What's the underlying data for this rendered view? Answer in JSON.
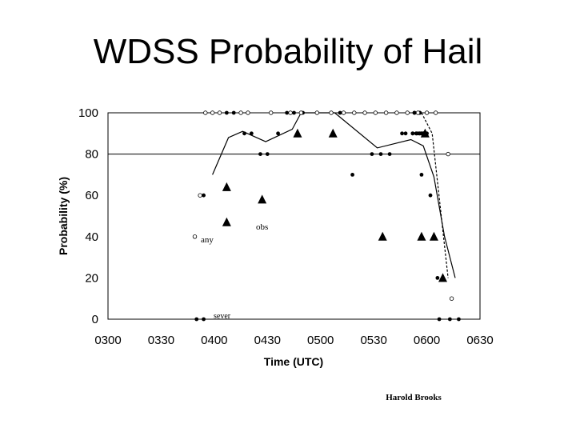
{
  "title": "WDSS Probability of Hail",
  "credit": "Harold Brooks",
  "chart_data": {
    "type": "scatter",
    "title": "WDSS Probability of Hail",
    "xlabel": "Time (UTC)",
    "ylabel": "Probability (%)",
    "x_tick_labels": [
      "0300",
      "0330",
      "0400",
      "0430",
      "0500",
      "0530",
      "0600",
      "0630"
    ],
    "y_tick_labels": [
      "0",
      "20",
      "40",
      "60",
      "80",
      "100"
    ],
    "xlim": [
      "0300",
      "0630"
    ],
    "ylim": [
      0,
      100
    ],
    "annotations": [
      "obs",
      "any",
      "sever"
    ],
    "reference_line": {
      "y": 80
    },
    "series": [
      {
        "marker": "filled-circle",
        "points": [
          {
            "x": "0354",
            "y": 60
          },
          {
            "x": "0407",
            "y": 100
          },
          {
            "x": "0411",
            "y": 100
          },
          {
            "x": "0417",
            "y": 90
          },
          {
            "x": "0421",
            "y": 90
          },
          {
            "x": "0426",
            "y": 80
          },
          {
            "x": "0430",
            "y": 80
          },
          {
            "x": "0436",
            "y": 90
          },
          {
            "x": "0441",
            "y": 100
          },
          {
            "x": "0445",
            "y": 100
          },
          {
            "x": "0450",
            "y": 100
          },
          {
            "x": "0458",
            "y": 100
          },
          {
            "x": "0506",
            "y": 100
          },
          {
            "x": "0511",
            "y": 100
          },
          {
            "x": "0518",
            "y": 70
          },
          {
            "x": "0529",
            "y": 80
          },
          {
            "x": "0534",
            "y": 80
          },
          {
            "x": "0539",
            "y": 80
          },
          {
            "x": "0546",
            "y": 90
          },
          {
            "x": "0552",
            "y": 90
          },
          {
            "x": "0557",
            "y": 90
          },
          {
            "x": "0549",
            "y": 100
          },
          {
            "x": "0553",
            "y": 100
          },
          {
            "x": "0556",
            "y": 100
          },
          {
            "x": "0548",
            "y": 90
          },
          {
            "x": "0552",
            "y": 90
          },
          {
            "x": "0556",
            "y": 90
          },
          {
            "x": "0549",
            "y": 100
          },
          {
            "x": "0553",
            "y": 100
          },
          {
            "x": "0556",
            "y": 100
          },
          {
            "x": "0554",
            "y": 90
          },
          {
            "x": "0557",
            "y": 90
          },
          {
            "x": "0558",
            "y": 90
          },
          {
            "x": "0556",
            "y": 90
          },
          {
            "x": "0558",
            "y": 90
          },
          {
            "x": "0559",
            "y": 90
          },
          {
            "x": "0557",
            "y": 90
          },
          {
            "x": "0559",
            "y": 90
          },
          {
            "x": "0600",
            "y": 90
          },
          {
            "x": "0557",
            "y": 70
          },
          {
            "x": "0602",
            "y": 60
          },
          {
            "x": "0604",
            "y": 40
          },
          {
            "x": "0606",
            "y": 20
          },
          {
            "x": "0554",
            "y": 90
          },
          {
            "x": "0558",
            "y": 90
          },
          {
            "x": "0555",
            "y": 90
          },
          {
            "x": "0350",
            "y": 0
          },
          {
            "x": "0354",
            "y": 0
          },
          {
            "x": "0607",
            "y": 0
          },
          {
            "x": "0613",
            "y": 0
          },
          {
            "x": "0618",
            "y": 0
          }
        ]
      },
      {
        "marker": "open-circle",
        "points": [
          {
            "x": "0349",
            "y": 40
          },
          {
            "x": "0352",
            "y": 60
          },
          {
            "x": "0355",
            "y": 100
          },
          {
            "x": "0359",
            "y": 100
          },
          {
            "x": "0403",
            "y": 100
          },
          {
            "x": "0415",
            "y": 100
          },
          {
            "x": "0419",
            "y": 100
          },
          {
            "x": "0432",
            "y": 100
          },
          {
            "x": "0443",
            "y": 100
          },
          {
            "x": "0449",
            "y": 100
          },
          {
            "x": "0458",
            "y": 100
          },
          {
            "x": "0506",
            "y": 100
          },
          {
            "x": "0513",
            "y": 100
          },
          {
            "x": "0519",
            "y": 100
          },
          {
            "x": "0525",
            "y": 100
          },
          {
            "x": "0531",
            "y": 100
          },
          {
            "x": "0537",
            "y": 100
          },
          {
            "x": "0543",
            "y": 100
          },
          {
            "x": "0549",
            "y": 100
          },
          {
            "x": "0555",
            "y": 100
          },
          {
            "x": "0600",
            "y": 100
          },
          {
            "x": "0605",
            "y": 100
          },
          {
            "x": "0612",
            "y": 80
          },
          {
            "x": "0614",
            "y": 10
          }
        ]
      },
      {
        "marker": "triangle",
        "points": [
          {
            "x": "0407",
            "y": 64
          },
          {
            "x": "0407",
            "y": 47
          },
          {
            "x": "0427",
            "y": 58
          },
          {
            "x": "0447",
            "y": 90
          },
          {
            "x": "0507",
            "y": 90
          },
          {
            "x": "0535",
            "y": 40
          },
          {
            "x": "0557",
            "y": 40
          },
          {
            "x": "0559",
            "y": 90
          },
          {
            "x": "0604",
            "y": 40
          },
          {
            "x": "0609",
            "y": 20
          }
        ]
      }
    ],
    "lines": [
      {
        "style": "solid",
        "points": [
          {
            "x": "0359",
            "y": 70
          },
          {
            "x": "0408",
            "y": 88
          },
          {
            "x": "0416",
            "y": 91
          },
          {
            "x": "0429",
            "y": 86
          },
          {
            "x": "0444",
            "y": 92
          },
          {
            "x": "0449",
            "y": 100
          },
          {
            "x": "0508",
            "y": 100
          },
          {
            "x": "0532",
            "y": 83
          },
          {
            "x": "0551",
            "y": 87
          },
          {
            "x": "0558",
            "y": 84
          },
          {
            "x": "0604",
            "y": 69
          },
          {
            "x": "0610",
            "y": 40
          },
          {
            "x": "0616",
            "y": 20
          }
        ]
      },
      {
        "style": "dashed",
        "points": [
          {
            "x": "0557",
            "y": 100
          },
          {
            "x": "0603",
            "y": 90
          },
          {
            "x": "0612",
            "y": 20
          }
        ]
      }
    ]
  }
}
